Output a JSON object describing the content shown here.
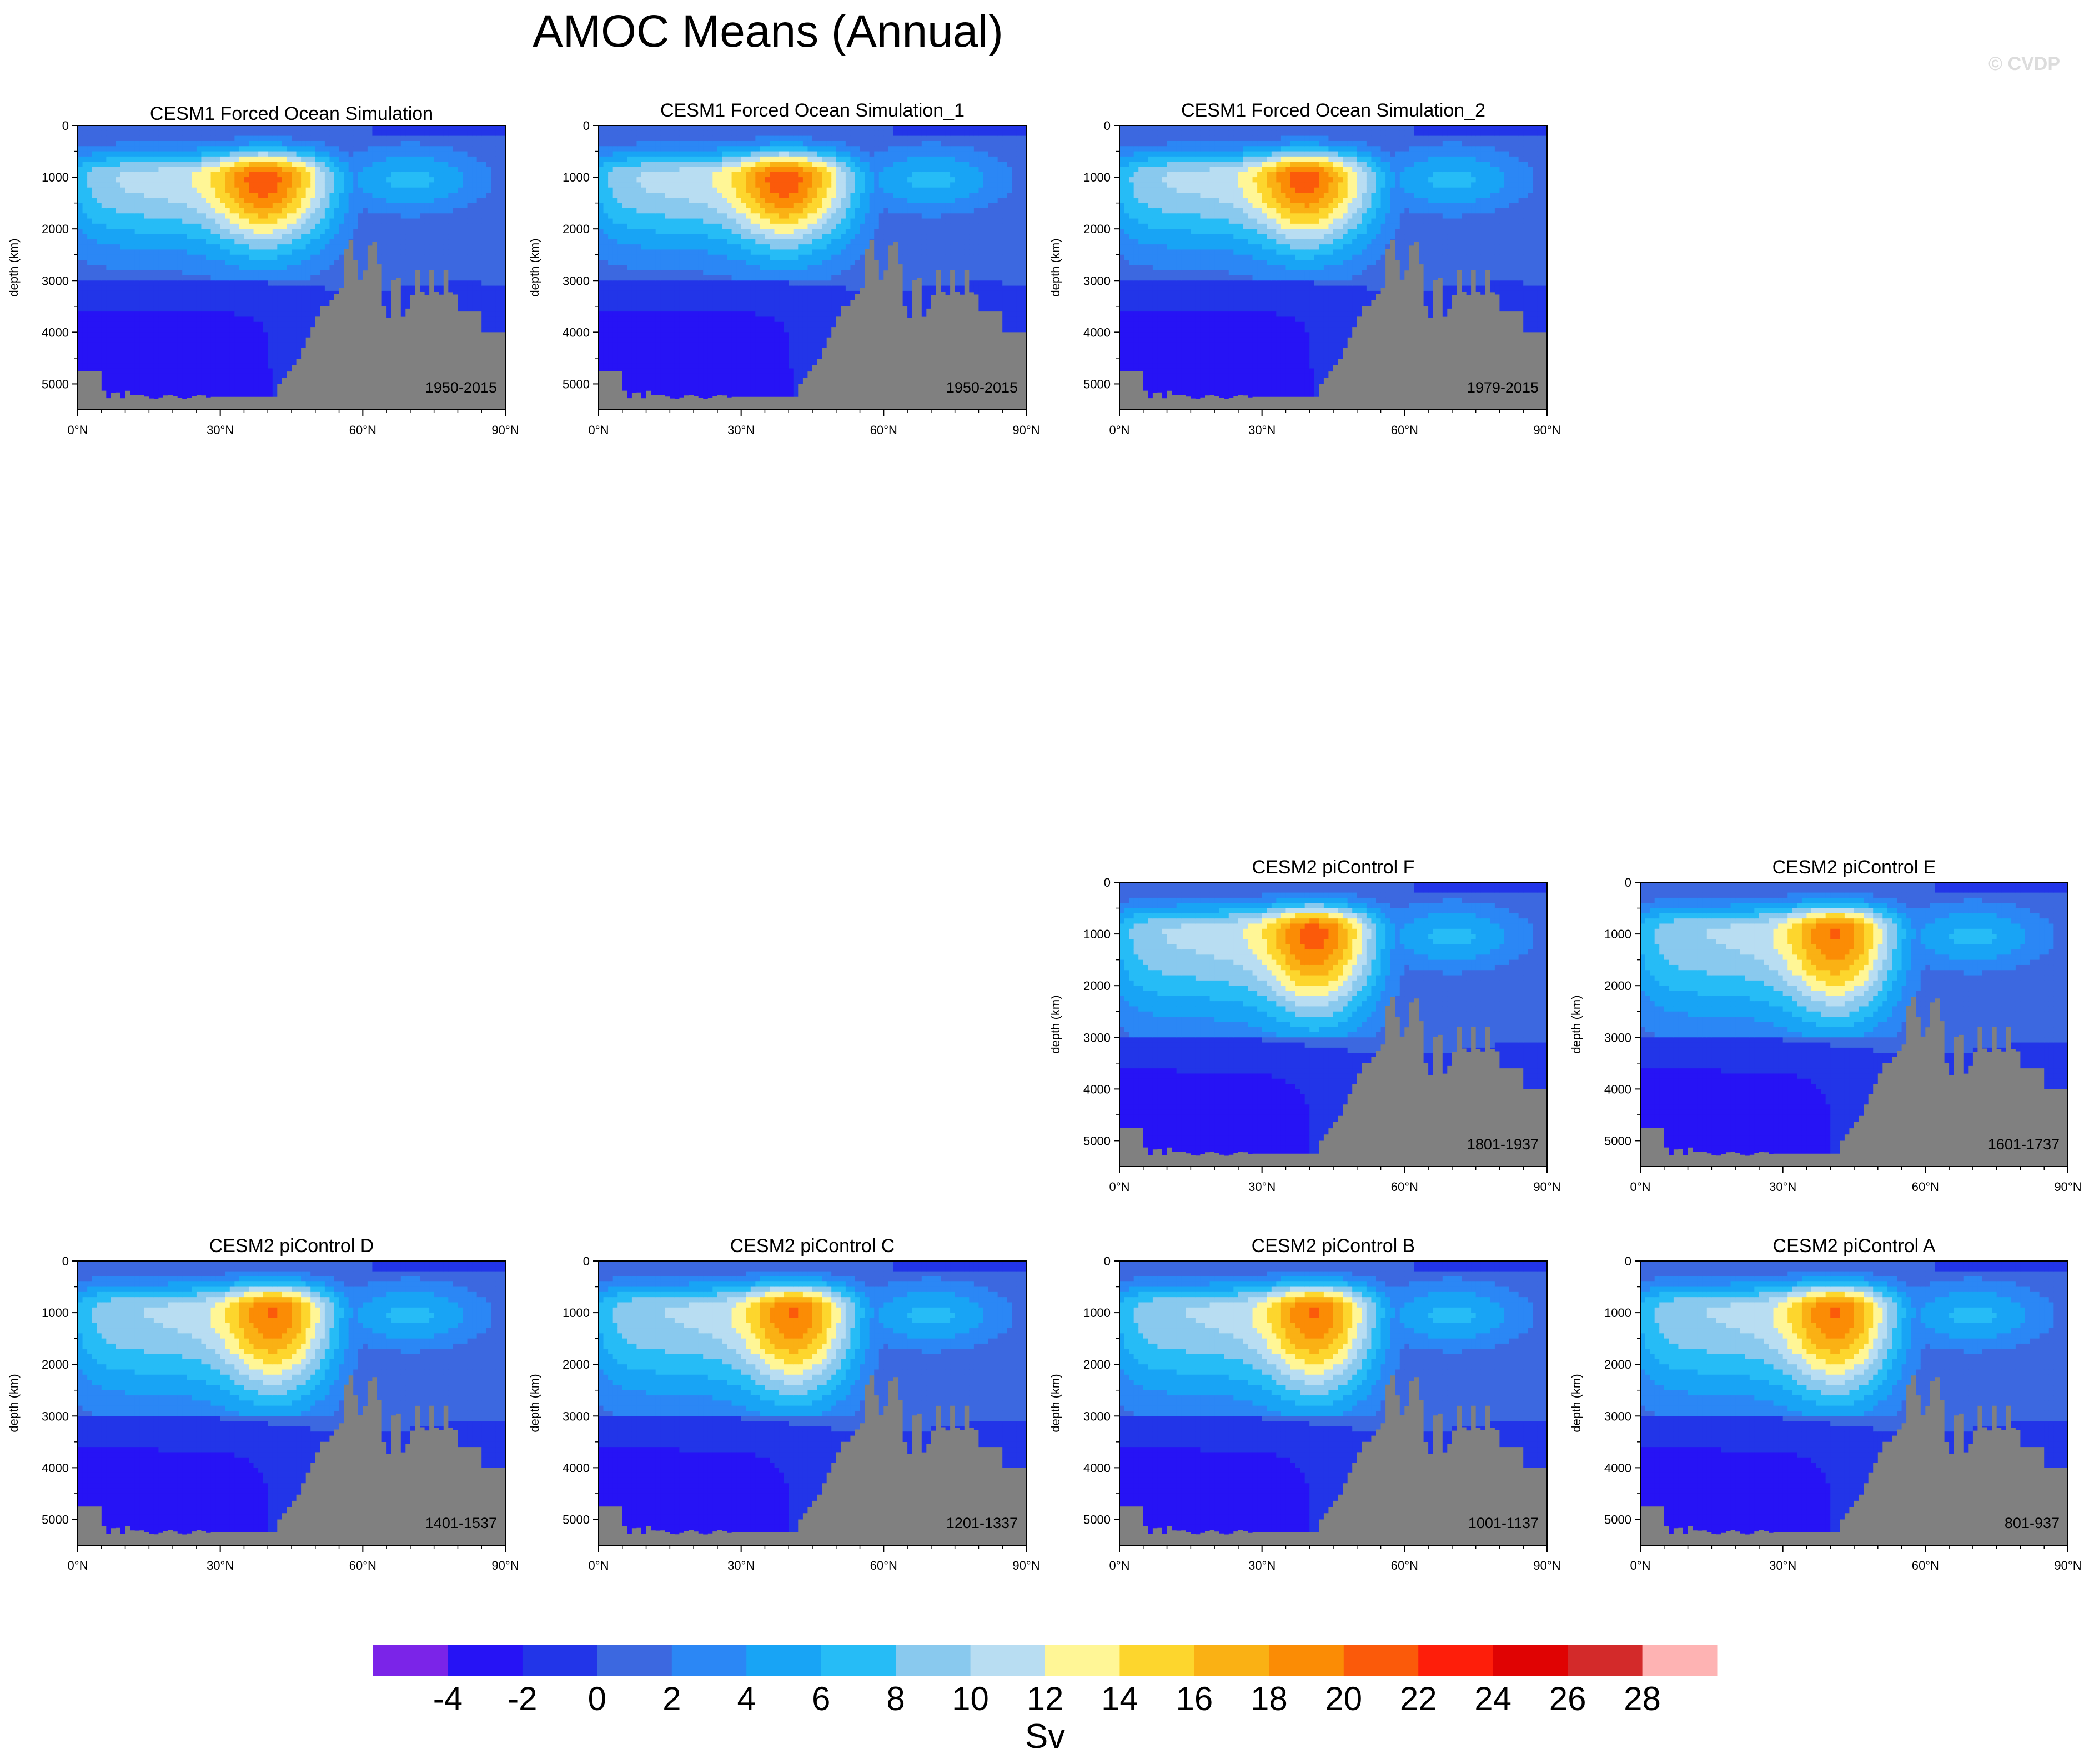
{
  "title": "AMOC Means (Annual)",
  "watermark": "© CVDP",
  "chart_data": {
    "type": "heatmap",
    "description_fields": {
      "xlabel": "",
      "ylabel": "depth (km)"
    },
    "x_ticks": [
      "0°N",
      "30°N",
      "60°N",
      "90°N"
    ],
    "x_range": [
      0,
      90
    ],
    "y_ticks": [
      "0",
      "1000",
      "2000",
      "3000",
      "4000",
      "5000"
    ],
    "y_range": [
      0,
      5500
    ],
    "y_reversed": true,
    "colorbar": {
      "label": "Sv",
      "tick_labels": [
        "-4",
        "-2",
        "0",
        "2",
        "4",
        "6",
        "8",
        "10",
        "12",
        "14",
        "16",
        "18",
        "20",
        "22",
        "24",
        "26",
        "28"
      ],
      "colors": [
        "#7b24e8",
        "#2613f5",
        "#2235e8",
        "#3c68e0",
        "#2b87f5",
        "#18a4f5",
        "#26bcf6",
        "#89c9ee",
        "#b8ddf2",
        "#fff696",
        "#fdd62d",
        "#fab114",
        "#fb8c05",
        "#fb5a0a",
        "#fe1e0a",
        "#e00303",
        "#d32a2a",
        "#feb3b3"
      ]
    },
    "panels": [
      {
        "id": "p1",
        "title": "CESM1 Forced Ocean Simulation",
        "period": "1950-2015",
        "max_sv": 25,
        "peak_lat": 39,
        "peak_depth": 1000,
        "variant": "forced"
      },
      {
        "id": "p2",
        "title": "CESM1 Forced Ocean Simulation_1",
        "period": "1950-2015",
        "max_sv": 25,
        "peak_lat": 39,
        "peak_depth": 1000,
        "variant": "forced"
      },
      {
        "id": "p3",
        "title": "CESM1 Forced Ocean Simulation_2",
        "period": "1979-2015",
        "max_sv": 24.5,
        "peak_lat": 39,
        "peak_depth": 1000,
        "variant": "forced"
      },
      {
        "id": "p4",
        "title": "CESM2 piControl F",
        "period": "1801-1937",
        "max_sv": 24.5,
        "peak_lat": 41,
        "peak_depth": 950,
        "variant": "control"
      },
      {
        "id": "p5",
        "title": "CESM2 piControl E",
        "period": "1601-1737",
        "max_sv": 23.5,
        "peak_lat": 41,
        "peak_depth": 950,
        "variant": "control"
      },
      {
        "id": "p6",
        "title": "CESM2 piControl D",
        "period": "1401-1537",
        "max_sv": 23.5,
        "peak_lat": 41,
        "peak_depth": 950,
        "variant": "control"
      },
      {
        "id": "p7",
        "title": "CESM2 piControl C",
        "period": "1201-1337",
        "max_sv": 23.5,
        "peak_lat": 41,
        "peak_depth": 950,
        "variant": "control"
      },
      {
        "id": "p8",
        "title": "CESM2 piControl B",
        "period": "1001-1137",
        "max_sv": 23.5,
        "peak_lat": 41,
        "peak_depth": 950,
        "variant": "control"
      },
      {
        "id": "p9",
        "title": "CESM2 piControl A",
        "period": "801-937",
        "max_sv": 23.5,
        "peak_lat": 41,
        "peak_depth": 950,
        "variant": "control"
      }
    ]
  }
}
